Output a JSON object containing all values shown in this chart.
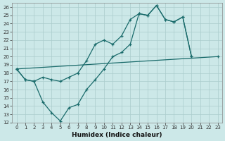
{
  "xlabel": "Humidex (Indice chaleur)",
  "background_color": "#cce8e8",
  "line_color": "#1a6b6b",
  "grid_color": "#aacccc",
  "xlim": [
    -0.5,
    23.5
  ],
  "ylim": [
    12,
    26.5
  ],
  "yticks": [
    12,
    13,
    14,
    15,
    16,
    17,
    18,
    19,
    20,
    21,
    22,
    23,
    24,
    25,
    26
  ],
  "xticks": [
    0,
    1,
    2,
    3,
    4,
    5,
    6,
    7,
    8,
    9,
    10,
    11,
    12,
    13,
    14,
    15,
    16,
    17,
    18,
    19,
    20,
    21,
    22,
    23
  ],
  "series1_x": [
    0,
    1,
    2,
    3,
    4,
    5,
    6,
    7,
    8,
    9,
    10,
    11,
    12,
    13,
    14,
    15,
    16,
    17,
    18,
    19,
    20
  ],
  "series1_y": [
    18.5,
    17.2,
    17.0,
    17.5,
    17.2,
    17.0,
    17.5,
    18.0,
    19.5,
    21.5,
    22.0,
    21.5,
    22.5,
    24.5,
    25.2,
    25.0,
    26.2,
    24.5,
    24.2,
    24.8,
    20.0
  ],
  "series2_x": [
    0,
    1,
    2,
    3,
    4,
    5,
    6,
    7,
    8,
    9,
    10,
    11,
    12,
    13,
    14,
    15,
    16,
    17,
    18,
    19,
    20
  ],
  "series2_y": [
    18.5,
    17.2,
    17.0,
    14.5,
    13.2,
    12.2,
    13.8,
    14.2,
    16.0,
    17.2,
    18.5,
    20.0,
    20.5,
    21.5,
    25.2,
    25.0,
    26.2,
    24.5,
    24.2,
    24.8,
    20.0
  ],
  "series3_x": [
    0,
    23
  ],
  "series3_y": [
    18.5,
    20.0
  ],
  "marker": "+"
}
